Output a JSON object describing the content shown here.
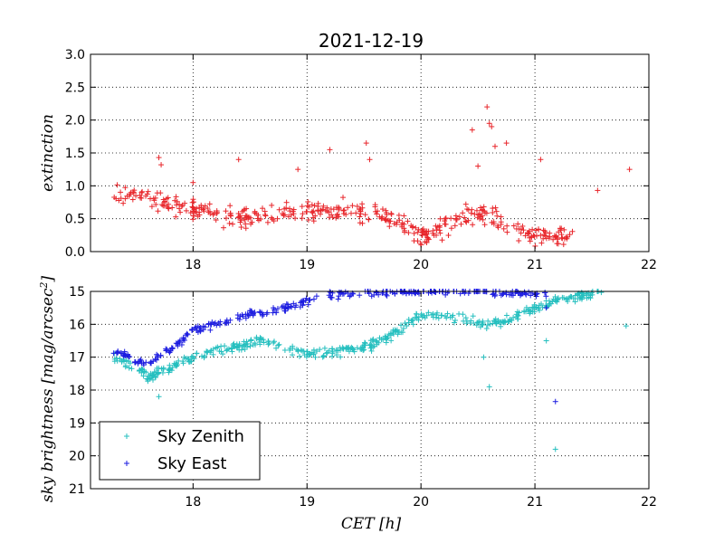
{
  "colors": {
    "extinction": "#e8262b",
    "zenith": "#25bfbf",
    "east": "#1c1ce0"
  },
  "chart_data": [
    {
      "type": "scatter",
      "title": "2021-12-19",
      "ylabel": "extinction",
      "xlim": [
        17.1,
        22.0
      ],
      "ylim": [
        0.0,
        3.0
      ],
      "xticks": [
        "18",
        "19",
        "20",
        "21",
        "22"
      ],
      "yticks": [
        "0.0",
        "0.5",
        "1.0",
        "1.5",
        "2.0",
        "2.5",
        "3.0"
      ],
      "grid": true,
      "marker": "+",
      "series": [
        {
          "trend": [
            [
              17.3,
              0.9
            ],
            [
              17.6,
              0.85
            ],
            [
              17.8,
              0.7
            ],
            [
              18.0,
              0.65
            ],
            [
              18.2,
              0.55
            ],
            [
              18.5,
              0.5
            ],
            [
              18.8,
              0.6
            ],
            [
              19.0,
              0.62
            ],
            [
              19.3,
              0.65
            ],
            [
              19.6,
              0.6
            ],
            [
              19.9,
              0.35
            ],
            [
              20.0,
              0.25
            ],
            [
              20.2,
              0.35
            ],
            [
              20.4,
              0.6
            ],
            [
              20.6,
              0.55
            ],
            [
              20.8,
              0.35
            ],
            [
              21.0,
              0.25
            ],
            [
              21.3,
              0.2
            ]
          ],
          "outliers": [
            [
              17.7,
              1.43
            ],
            [
              17.72,
              1.32
            ],
            [
              18.0,
              1.05
            ],
            [
              18.4,
              1.4
            ],
            [
              18.92,
              1.25
            ],
            [
              19.2,
              1.55
            ],
            [
              19.52,
              1.65
            ],
            [
              19.55,
              1.4
            ],
            [
              20.45,
              1.85
            ],
            [
              20.58,
              2.2
            ],
            [
              20.6,
              1.95
            ],
            [
              20.62,
              1.9
            ],
            [
              20.65,
              1.6
            ],
            [
              20.75,
              1.65
            ],
            [
              21.05,
              1.4
            ],
            [
              21.83,
              1.25
            ],
            [
              21.55,
              0.93
            ],
            [
              20.5,
              1.3
            ]
          ]
        }
      ]
    },
    {
      "type": "scatter",
      "xlabel": "CET [h]",
      "ylabel": "sky brightness [mag/arcsec^2]",
      "xlim": [
        17.1,
        22.0
      ],
      "ylim": [
        21,
        15
      ],
      "xticks": [
        "18",
        "19",
        "20",
        "21",
        "22"
      ],
      "yticks": [
        "15",
        "16",
        "17",
        "18",
        "19",
        "20",
        "21"
      ],
      "grid": true,
      "legend": "lower-left",
      "marker": "+",
      "series": [
        {
          "name": "Sky Zenith",
          "trend": [
            [
              17.3,
              17.0
            ],
            [
              17.5,
              17.3
            ],
            [
              17.6,
              17.6
            ],
            [
              17.8,
              17.3
            ],
            [
              18.0,
              17.0
            ],
            [
              18.3,
              16.7
            ],
            [
              18.6,
              16.5
            ],
            [
              19.0,
              16.9
            ],
            [
              19.3,
              16.8
            ],
            [
              19.6,
              16.6
            ],
            [
              19.8,
              16.2
            ],
            [
              20.0,
              15.7
            ],
            [
              20.3,
              15.8
            ],
            [
              20.6,
              16.0
            ],
            [
              20.8,
              15.8
            ],
            [
              21.0,
              15.5
            ],
            [
              21.3,
              15.2
            ],
            [
              21.6,
              15.0
            ]
          ],
          "outliers": [
            [
              17.7,
              18.2
            ],
            [
              20.6,
              17.9
            ],
            [
              21.18,
              19.8
            ],
            [
              21.8,
              16.05
            ],
            [
              20.55,
              17.0
            ],
            [
              21.1,
              16.5
            ]
          ]
        },
        {
          "name": "Sky East",
          "trend": [
            [
              17.3,
              16.8
            ],
            [
              17.5,
              17.1
            ],
            [
              17.6,
              17.2
            ],
            [
              17.8,
              16.8
            ],
            [
              18.0,
              16.2
            ],
            [
              18.2,
              16.0
            ],
            [
              18.5,
              15.7
            ],
            [
              18.8,
              15.5
            ],
            [
              19.0,
              15.3
            ],
            [
              19.2,
              15.1
            ],
            [
              19.6,
              15.0
            ],
            [
              20.5,
              15.0
            ],
            [
              21.0,
              15.1
            ]
          ],
          "outliers": [
            [
              21.18,
              18.35
            ],
            [
              21.1,
              15.5
            ]
          ]
        }
      ]
    }
  ]
}
